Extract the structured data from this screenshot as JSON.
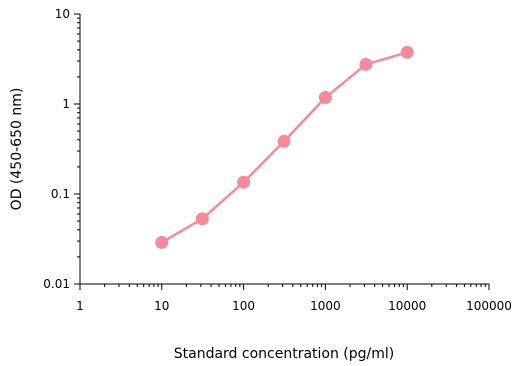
{
  "chart_data": {
    "type": "line",
    "title": "",
    "xlabel": "Standard concentration (pg/ml)",
    "ylabel": "OD (450-650 nm)",
    "xscale": "log",
    "yscale": "log",
    "xlim": [
      1,
      100000
    ],
    "ylim": [
      0.01,
      10
    ],
    "x_ticks": [
      1,
      10,
      100,
      1000,
      10000,
      100000
    ],
    "x_tick_labels": [
      "1",
      "10",
      "100",
      "1000",
      "10000",
      "100000"
    ],
    "y_ticks": [
      0.01,
      0.1,
      1,
      10
    ],
    "y_tick_labels": [
      "0.01",
      "0.1",
      "1",
      "10"
    ],
    "grid": false,
    "legend": "none",
    "series": [
      {
        "color": "#f48a9b",
        "x": [
          10,
          31.25,
          100,
          312.5,
          1000,
          3125,
          10000
        ],
        "y": [
          0.029,
          0.053,
          0.135,
          0.385,
          1.18,
          2.75,
          3.75
        ]
      }
    ]
  }
}
